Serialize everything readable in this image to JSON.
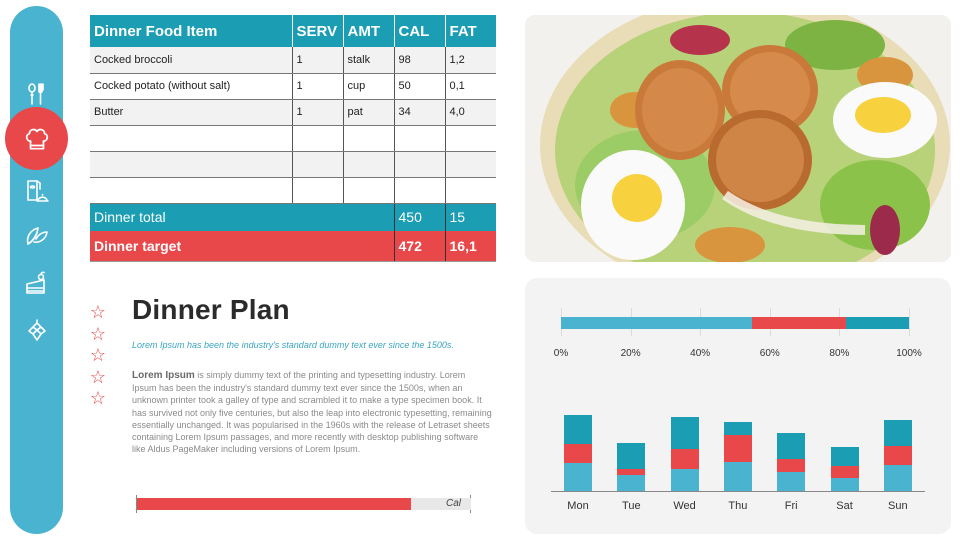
{
  "sidebar": {
    "items": [
      {
        "icon": "cutlery-icon",
        "active": false
      },
      {
        "icon": "chef-hat-icon",
        "active": true
      },
      {
        "icon": "menu-card-cloche-icon",
        "active": false
      },
      {
        "icon": "leaf-icon",
        "active": false
      },
      {
        "icon": "cake-slice-icon",
        "active": false
      },
      {
        "icon": "hops-icon",
        "active": false
      }
    ],
    "colors": {
      "bar": "#4ab3cf",
      "active": "#e8484a"
    }
  },
  "table": {
    "headers": [
      "Dinner Food Item",
      "SERV",
      "AMT",
      "CAL",
      "FAT"
    ],
    "rows": [
      [
        "Cocked broccoli",
        "1",
        "stalk",
        "98",
        "1,2"
      ],
      [
        "Cocked potato (without salt)",
        "1",
        "cup",
        "50",
        "0,1"
      ],
      [
        "Butter",
        "1",
        "pat",
        "34",
        "4,0"
      ],
      [
        "",
        "",
        "",
        "",
        ""
      ],
      [
        "",
        "",
        "",
        "",
        ""
      ],
      [
        "",
        "",
        "",
        "",
        ""
      ]
    ],
    "total": {
      "label": "Dinner total",
      "cal": "450",
      "fat": "15"
    },
    "target": {
      "label": "Dinner target",
      "cal": "472",
      "fat": "16,1"
    },
    "colors": {
      "header": "#1b9db3",
      "target": "#e8484a"
    }
  },
  "image": {
    "alt": "Salad bowl with seared scallops, boiled eggs, lettuce and croutons"
  },
  "plan": {
    "title": "Dinner Plan",
    "subtitle": "Lorem Ipsum has been the industry's standard dummy text ever since the 1500s.",
    "body_lead": "Lorem Ipsum",
    "body": " is  simply dummy text of the printing and typesetting industry. Lorem Ipsum has been the industry's standard dummy text ever since the 1500s, when an unknown printer took a galley of type and scrambled it to make a type specimen  book. It has survived  not only five centuries, but also the leap  into electronic typesetting, remaining essentially  unchanged. It was popularised in the 1960s with the release  of Letraset sheets containing Lorem Ipsum passages, and more recently with desktop publishing software like Aldus PageMaker including versions of Lorem Ipsum.",
    "star_count": 5
  },
  "cal_progress": {
    "label": "Cal",
    "percent": 82,
    "color": "#e8484a"
  },
  "chart_data": [
    {
      "type": "bar",
      "orientation": "horizontal",
      "stacked": true,
      "title": "",
      "categories": [
        "Total"
      ],
      "series": [
        {
          "name": "Series 1",
          "color": "#4ab3cf",
          "values": [
            55
          ]
        },
        {
          "name": "Series 2",
          "color": "#e8484a",
          "values": [
            27
          ]
        },
        {
          "name": "Series 3",
          "color": "#1b9db3",
          "values": [
            18
          ]
        }
      ],
      "xlim": [
        0,
        100
      ],
      "xticks": [
        "0%",
        "20%",
        "40%",
        "60%",
        "80%",
        "100%"
      ],
      "grid": true,
      "legend": "none"
    },
    {
      "type": "bar",
      "stacked": true,
      "title": "",
      "categories": [
        "Mon",
        "Tue",
        "Wed",
        "Thu",
        "Fri",
        "Sat",
        "Sun"
      ],
      "series": [
        {
          "name": "Series 1",
          "color": "#4ab3cf",
          "values": [
            28,
            16,
            22,
            29,
            19,
            13,
            26
          ]
        },
        {
          "name": "Series 2",
          "color": "#e8484a",
          "values": [
            19,
            6,
            20,
            27,
            13,
            12,
            19
          ]
        },
        {
          "name": "Series 3",
          "color": "#1b9db3",
          "values": [
            29,
            26,
            32,
            13,
            26,
            19,
            26
          ]
        }
      ],
      "xlabel": "",
      "ylabel": "",
      "grid": false,
      "legend": "none"
    }
  ]
}
